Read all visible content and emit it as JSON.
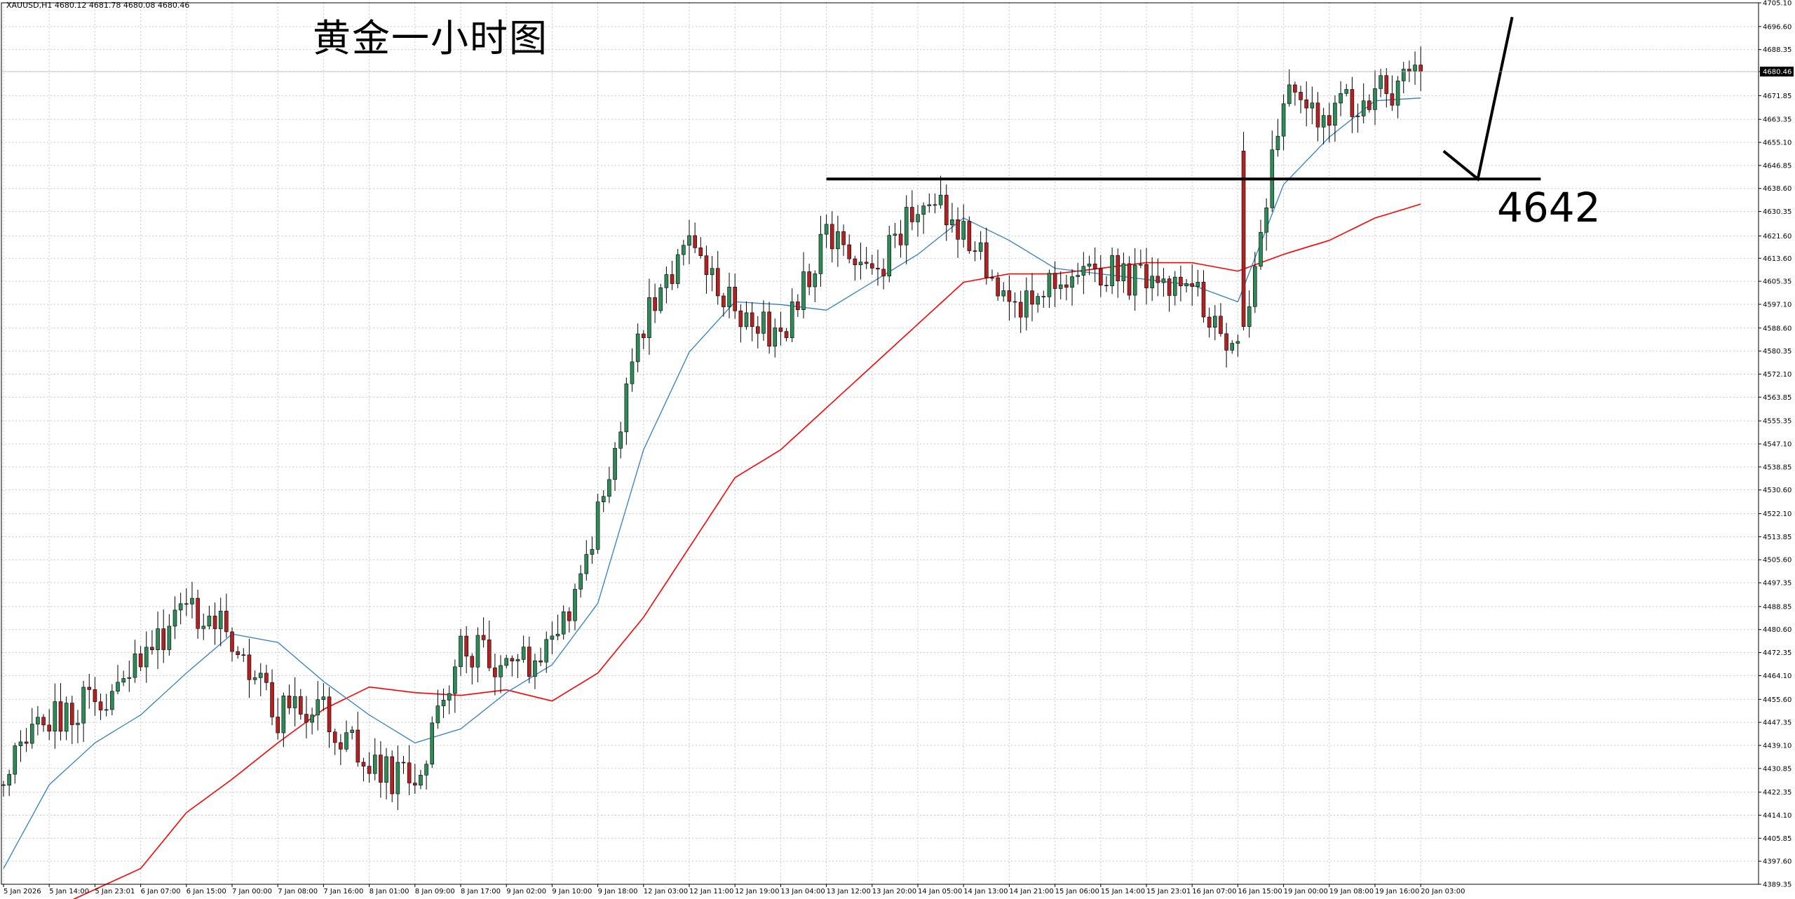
{
  "header": {
    "symbol_info": "XAUUSD,H1  4680.12 4681.78 4680.08 4680.46"
  },
  "annotations": {
    "title": "黄金一小时图",
    "level_label": "4642"
  },
  "colors": {
    "ma_fast": "#2e7fc2",
    "ma_slow": "#ff0000",
    "bull": "#2e8b57",
    "bear": "#b22222",
    "level": "#000000",
    "grid": "#c8c8c8"
  },
  "chart_data": {
    "type": "candlestick",
    "symbol": "XAUUSD",
    "timeframe": "H1",
    "last_price": 4680.46,
    "grid": true,
    "ylim": [
      4389.35,
      4705.1
    ],
    "y_ticks": [
      "4705.10",
      "4696.60",
      "4688.35",
      "4680.46",
      "4671.85",
      "4663.35",
      "4655.10",
      "4646.85",
      "4638.60",
      "4630.35",
      "4621.60",
      "4613.60",
      "4605.35",
      "4597.10",
      "4588.60",
      "4580.35",
      "4572.10",
      "4563.85",
      "4555.35",
      "4547.10",
      "4538.85",
      "4530.60",
      "4522.10",
      "4513.85",
      "4505.60",
      "4497.35",
      "4488.85",
      "4480.60",
      "4472.35",
      "4464.10",
      "4455.60",
      "4447.35",
      "4439.10",
      "4430.85",
      "4422.35",
      "4414.10",
      "4405.85",
      "4397.60",
      "4389.35"
    ],
    "x_ticks": [
      "5 Jan 2026",
      "5 Jan 14:00",
      "5 Jan 23:01",
      "6 Jan 07:00",
      "6 Jan 15:00",
      "7 Jan 00:00",
      "7 Jan 08:00",
      "7 Jan 16:00",
      "8 Jan 01:00",
      "8 Jan 09:00",
      "8 Jan 17:00",
      "9 Jan 02:00",
      "9 Jan 10:00",
      "9 Jan 18:00",
      "12 Jan 03:00",
      "12 Jan 11:00",
      "12 Jan 19:00",
      "13 Jan 04:00",
      "13 Jan 12:00",
      "13 Jan 20:00",
      "14 Jan 05:00",
      "14 Jan 13:00",
      "14 Jan 21:00",
      "15 Jan 06:00",
      "15 Jan 14:00",
      "15 Jan 23:01",
      "16 Jan 07:00",
      "16 Jan 15:00",
      "19 Jan 00:00",
      "19 Jan 08:00",
      "19 Jan 16:00",
      "20 Jan 03:00"
    ],
    "price_anchors": [
      [
        "5 Jan 2026",
        4428
      ],
      [
        "5 Jan 14:00",
        4448
      ],
      [
        "5 Jan 23:01",
        4455
      ],
      [
        "6 Jan 07:00",
        4470
      ],
      [
        "6 Jan 15:00",
        4488
      ],
      [
        "7 Jan 00:00",
        4478
      ],
      [
        "7 Jan 08:00",
        4450
      ],
      [
        "7 Jan 16:00",
        4452
      ],
      [
        "8 Jan 01:00",
        4430
      ],
      [
        "8 Jan 09:00",
        4425
      ],
      [
        "8 Jan 17:00",
        4475
      ],
      [
        "9 Jan 02:00",
        4466
      ],
      [
        "9 Jan 10:00",
        4472
      ],
      [
        "9 Jan 18:00",
        4522
      ],
      [
        "12 Jan 03:00",
        4590
      ],
      [
        "12 Jan 11:00",
        4620
      ],
      [
        "12 Jan 19:00",
        4595
      ],
      [
        "13 Jan 04:00",
        4585
      ],
      [
        "13 Jan 12:00",
        4625
      ],
      [
        "13 Jan 20:00",
        4605
      ],
      [
        "14 Jan 05:00",
        4635
      ],
      [
        "14 Jan 13:00",
        4625
      ],
      [
        "14 Jan 21:00",
        4595
      ],
      [
        "15 Jan 06:00",
        4608
      ],
      [
        "15 Jan 14:00",
        4610
      ],
      [
        "15 Jan 23:01",
        4605
      ],
      [
        "16 Jan 07:00",
        4605
      ],
      [
        "16 Jan 15:00",
        4580
      ],
      [
        "19 Jan 00:00",
        4670
      ],
      [
        "19 Jan 08:00",
        4665
      ],
      [
        "19 Jan 16:00",
        4672
      ],
      [
        "20 Jan 03:00",
        4680.46
      ]
    ],
    "gap": {
      "after": "16 Jan 15:00",
      "open": 4652
    },
    "fast_ma_anchors": [
      [
        "5 Jan 2026",
        4395
      ],
      [
        "5 Jan 14:00",
        4425
      ],
      [
        "5 Jan 23:01",
        4440
      ],
      [
        "6 Jan 07:00",
        4450
      ],
      [
        "6 Jan 15:00",
        4465
      ],
      [
        "7 Jan 00:00",
        4479
      ],
      [
        "7 Jan 08:00",
        4476
      ],
      [
        "7 Jan 16:00",
        4462
      ],
      [
        "8 Jan 01:00",
        4450
      ],
      [
        "8 Jan 09:00",
        4440
      ],
      [
        "8 Jan 17:00",
        4445
      ],
      [
        "9 Jan 02:00",
        4458
      ],
      [
        "9 Jan 10:00",
        4468
      ],
      [
        "9 Jan 18:00",
        4490
      ],
      [
        "12 Jan 03:00",
        4545
      ],
      [
        "12 Jan 11:00",
        4580
      ],
      [
        "12 Jan 19:00",
        4598
      ],
      [
        "13 Jan 04:00",
        4597
      ],
      [
        "13 Jan 12:00",
        4595
      ],
      [
        "13 Jan 20:00",
        4605
      ],
      [
        "14 Jan 05:00",
        4615
      ],
      [
        "14 Jan 13:00",
        4628
      ],
      [
        "14 Jan 21:00",
        4620
      ],
      [
        "15 Jan 06:00",
        4610
      ],
      [
        "15 Jan 14:00",
        4608
      ],
      [
        "15 Jan 23:01",
        4606
      ],
      [
        "16 Jan 07:00",
        4604
      ],
      [
        "16 Jan 15:00",
        4598
      ],
      [
        "19 Jan 00:00",
        4640
      ],
      [
        "19 Jan 08:00",
        4657
      ],
      [
        "19 Jan 16:00",
        4670
      ],
      [
        "20 Jan 03:00",
        4671
      ]
    ],
    "slow_ma_anchors": [
      [
        "5 Jan 14:00",
        4380
      ],
      [
        "6 Jan 07:00",
        4395
      ],
      [
        "6 Jan 15:00",
        4415
      ],
      [
        "7 Jan 00:00",
        4427
      ],
      [
        "7 Jan 08:00",
        4440
      ],
      [
        "7 Jan 16:00",
        4452
      ],
      [
        "8 Jan 01:00",
        4460
      ],
      [
        "8 Jan 09:00",
        4458
      ],
      [
        "8 Jan 17:00",
        4457
      ],
      [
        "9 Jan 02:00",
        4459
      ],
      [
        "9 Jan 10:00",
        4455
      ],
      [
        "9 Jan 18:00",
        4465
      ],
      [
        "12 Jan 03:00",
        4485
      ],
      [
        "12 Jan 11:00",
        4510
      ],
      [
        "12 Jan 19:00",
        4535
      ],
      [
        "13 Jan 04:00",
        4545
      ],
      [
        "13 Jan 12:00",
        4560
      ],
      [
        "13 Jan 20:00",
        4575
      ],
      [
        "14 Jan 05:00",
        4590
      ],
      [
        "14 Jan 13:00",
        4605
      ],
      [
        "14 Jan 21:00",
        4608
      ],
      [
        "15 Jan 06:00",
        4608
      ],
      [
        "15 Jan 14:00",
        4610
      ],
      [
        "15 Jan 23:01",
        4612
      ],
      [
        "16 Jan 07:00",
        4612
      ],
      [
        "16 Jan 15:00",
        4609
      ],
      [
        "19 Jan 00:00",
        4615
      ],
      [
        "19 Jan 08:00",
        4620
      ],
      [
        "19 Jan 16:00",
        4628
      ],
      [
        "20 Jan 03:00",
        4633
      ]
    ],
    "horizontal_level": {
      "value": 4642,
      "from": "13 Jan 12:00",
      "to_hours_after_last": 21
    },
    "projection": [
      {
        "hours_after_last": 4,
        "price": 4652
      },
      {
        "hours_after_last": 10,
        "price": 4642
      },
      {
        "hours_after_last": 16,
        "price": 4700
      }
    ]
  }
}
